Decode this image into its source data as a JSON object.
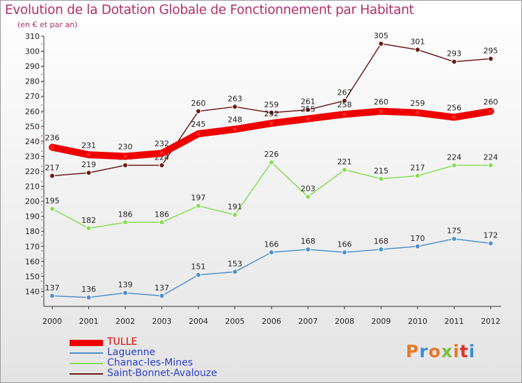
{
  "title": "Evolution de la Dotation Globale de Fonctionnement par Habitant",
  "subtitle": "(en € et par an)",
  "logo": {
    "text": "Proxiti",
    "colors": [
      "#e8782a",
      "#3a8fd8",
      "#e8782a",
      "#7bc043",
      "#e8782a",
      "#d9342b",
      "#3a8fd8"
    ]
  },
  "chart_data": {
    "type": "line",
    "x": [
      "2000",
      "2001",
      "2002",
      "2003",
      "2004",
      "2005",
      "2006",
      "2007",
      "2008",
      "2009",
      "2010",
      "2011",
      "2012"
    ],
    "ylim": [
      130,
      310
    ],
    "yticks": [
      140,
      150,
      160,
      170,
      180,
      190,
      200,
      210,
      220,
      230,
      240,
      250,
      260,
      270,
      280,
      290,
      300,
      310
    ],
    "grid": false,
    "legend_placement": "bottom-left",
    "series": [
      {
        "name": "TULLE",
        "color": "#ee0000",
        "values": [
          236,
          231,
          230,
          232,
          245,
          248,
          252,
          255,
          258,
          260,
          259,
          256,
          260
        ]
      },
      {
        "name": "Laguenne",
        "color": "#4f8fcc",
        "values": [
          137,
          136,
          139,
          137,
          151,
          153,
          166,
          168,
          166,
          168,
          170,
          175,
          172
        ]
      },
      {
        "name": "Chanac-les-Mines",
        "color": "#88dd55",
        "values": [
          195,
          182,
          186,
          186,
          197,
          191,
          226,
          203,
          221,
          215,
          217,
          224,
          224
        ]
      },
      {
        "name": "Saint-Bonnet-Avalouze",
        "color": "#6b1a1a",
        "values": [
          217,
          219,
          224,
          224,
          260,
          263,
          259,
          261,
          267,
          305,
          301,
          293,
          295
        ]
      }
    ]
  }
}
